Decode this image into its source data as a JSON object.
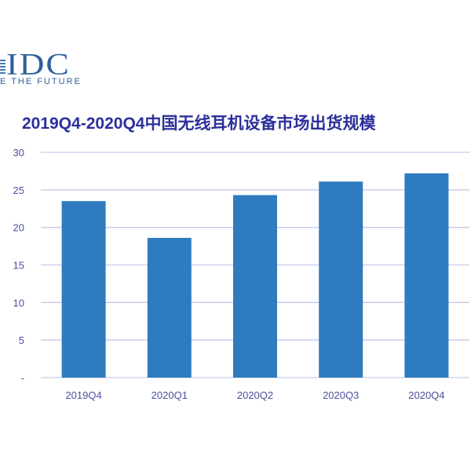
{
  "logo": {
    "mark_text": "IDC",
    "tagline": "E THE FUTURE",
    "colors": {
      "logo": "#2e5e9c"
    }
  },
  "chart_data": {
    "type": "bar",
    "title": "2019Q4-2020Q4中国无线耳机设备市场出货规模",
    "xlabel": "",
    "ylabel": "",
    "categories": [
      "2019Q4",
      "2020Q1",
      "2020Q2",
      "2020Q3",
      "2020Q4"
    ],
    "values": [
      23.5,
      18.6,
      24.3,
      26.1,
      27.2
    ],
    "ylim": [
      0,
      30
    ],
    "yticks": [
      0,
      5,
      10,
      15,
      20,
      25,
      30
    ],
    "ytick_labels": [
      "-",
      "5",
      "10",
      "15",
      "20",
      "25",
      "30"
    ],
    "grid": true,
    "legend": "none",
    "colors": {
      "bar": "#2e7bbf",
      "grid": "#c7c9ef",
      "title": "#2b2f9a",
      "tick_label": "#4a4f9e"
    }
  }
}
